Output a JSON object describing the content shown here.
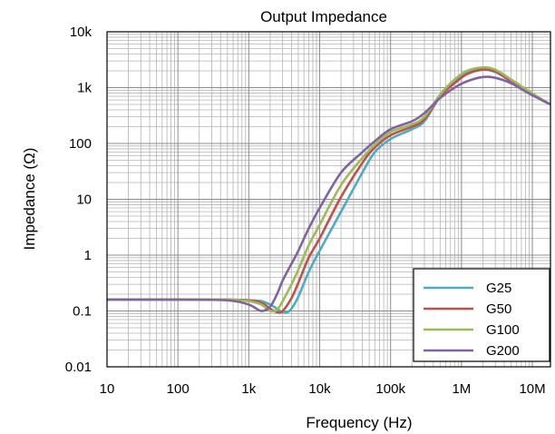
{
  "chart_data": {
    "type": "line",
    "title": "Output Impedance",
    "xlabel": "Frequency (Hz)",
    "ylabel": "Impedance (Ω)",
    "x_scale": "log",
    "y_scale": "log",
    "xlim": [
      10,
      18000000
    ],
    "ylim": [
      0.01,
      10000
    ],
    "x_ticks": [
      {
        "value": 10,
        "label": "10"
      },
      {
        "value": 100,
        "label": "100"
      },
      {
        "value": 1000,
        "label": "1k"
      },
      {
        "value": 10000,
        "label": "10k"
      },
      {
        "value": 100000,
        "label": "100k"
      },
      {
        "value": 1000000,
        "label": "1M"
      },
      {
        "value": 10000000,
        "label": "10M"
      }
    ],
    "y_ticks": [
      {
        "value": 0.01,
        "label": "0.01"
      },
      {
        "value": 0.1,
        "label": "0.1"
      },
      {
        "value": 1,
        "label": "1"
      },
      {
        "value": 10,
        "label": "10"
      },
      {
        "value": 100,
        "label": "100"
      },
      {
        "value": 1000,
        "label": "1k"
      },
      {
        "value": 10000,
        "label": "10k"
      }
    ],
    "grid": true,
    "legend_position": "bottom-right",
    "series": [
      {
        "name": "G25",
        "color": "#4BACC6",
        "points": [
          [
            10,
            0.16
          ],
          [
            100,
            0.16
          ],
          [
            500,
            0.16
          ],
          [
            1000,
            0.155
          ],
          [
            1500,
            0.15
          ],
          [
            2000,
            0.13
          ],
          [
            2500,
            0.11
          ],
          [
            3000,
            0.095
          ],
          [
            3500,
            0.095
          ],
          [
            4000,
            0.11
          ],
          [
            5000,
            0.18
          ],
          [
            7000,
            0.5
          ],
          [
            10000,
            1.2
          ],
          [
            20000,
            6
          ],
          [
            40000,
            30
          ],
          [
            60000,
            70
          ],
          [
            100000,
            120
          ],
          [
            200000,
            180
          ],
          [
            300000,
            250
          ],
          [
            500000,
            700
          ],
          [
            800000,
            1300
          ],
          [
            1200000,
            1900
          ],
          [
            2000000,
            2100
          ],
          [
            3000000,
            1900
          ],
          [
            5000000,
            1300
          ],
          [
            8000000,
            900
          ],
          [
            12000000,
            650
          ],
          [
            18000000,
            500
          ]
        ]
      },
      {
        "name": "G50",
        "color": "#C0504D",
        "points": [
          [
            10,
            0.16
          ],
          [
            100,
            0.16
          ],
          [
            500,
            0.16
          ],
          [
            1000,
            0.155
          ],
          [
            1500,
            0.14
          ],
          [
            2000,
            0.11
          ],
          [
            2500,
            0.095
          ],
          [
            3000,
            0.1
          ],
          [
            4000,
            0.17
          ],
          [
            5000,
            0.32
          ],
          [
            7000,
            0.9
          ],
          [
            10000,
            2
          ],
          [
            20000,
            11
          ],
          [
            40000,
            45
          ],
          [
            60000,
            85
          ],
          [
            100000,
            140
          ],
          [
            200000,
            200
          ],
          [
            300000,
            270
          ],
          [
            500000,
            700
          ],
          [
            800000,
            1200
          ],
          [
            1200000,
            1750
          ],
          [
            2000000,
            2100
          ],
          [
            3000000,
            1950
          ],
          [
            5000000,
            1300
          ],
          [
            8000000,
            900
          ],
          [
            12000000,
            650
          ],
          [
            18000000,
            500
          ]
        ]
      },
      {
        "name": "G100",
        "color": "#9BBB59",
        "points": [
          [
            10,
            0.16
          ],
          [
            100,
            0.16
          ],
          [
            500,
            0.16
          ],
          [
            1000,
            0.15
          ],
          [
            1500,
            0.13
          ],
          [
            2000,
            0.1
          ],
          [
            2500,
            0.105
          ],
          [
            3000,
            0.15
          ],
          [
            4000,
            0.3
          ],
          [
            5000,
            0.55
          ],
          [
            7000,
            1.5
          ],
          [
            10000,
            3.5
          ],
          [
            20000,
            18
          ],
          [
            40000,
            55
          ],
          [
            60000,
            95
          ],
          [
            100000,
            160
          ],
          [
            200000,
            220
          ],
          [
            300000,
            300
          ],
          [
            500000,
            750
          ],
          [
            800000,
            1400
          ],
          [
            1200000,
            2000
          ],
          [
            2000000,
            2300
          ],
          [
            3000000,
            2100
          ],
          [
            5000000,
            1400
          ],
          [
            8000000,
            950
          ],
          [
            12000000,
            680
          ],
          [
            18000000,
            500
          ]
        ]
      },
      {
        "name": "G200",
        "color": "#8064A2",
        "points": [
          [
            10,
            0.16
          ],
          [
            100,
            0.16
          ],
          [
            500,
            0.155
          ],
          [
            1000,
            0.13
          ],
          [
            1500,
            0.1
          ],
          [
            2000,
            0.12
          ],
          [
            2500,
            0.2
          ],
          [
            3000,
            0.35
          ],
          [
            4000,
            0.7
          ],
          [
            5000,
            1.2
          ],
          [
            7000,
            3
          ],
          [
            10000,
            7
          ],
          [
            20000,
            30
          ],
          [
            40000,
            70
          ],
          [
            60000,
            110
          ],
          [
            100000,
            180
          ],
          [
            200000,
            250
          ],
          [
            300000,
            350
          ],
          [
            500000,
            650
          ],
          [
            800000,
            1000
          ],
          [
            1200000,
            1300
          ],
          [
            2000000,
            1550
          ],
          [
            3000000,
            1500
          ],
          [
            5000000,
            1200
          ],
          [
            8000000,
            850
          ],
          [
            12000000,
            650
          ],
          [
            18000000,
            500
          ]
        ]
      }
    ]
  }
}
